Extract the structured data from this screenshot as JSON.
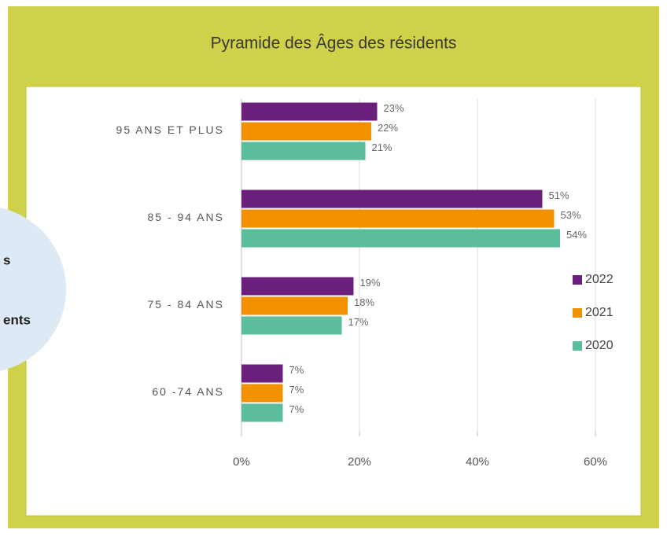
{
  "chart_data": {
    "type": "bar",
    "orientation": "horizontal",
    "title": "Pyramide des Âges des résidents",
    "categories": [
      "95 ANS ET PLUS",
      "85 - 94 ANS",
      "75 - 84 ANS",
      "60 -74 ANS"
    ],
    "series": [
      {
        "name": "2022",
        "color": "#6b1f7c",
        "values": [
          23,
          51,
          19,
          7
        ],
        "value_labels": [
          "23%",
          "51%",
          "19%",
          "7%"
        ]
      },
      {
        "name": "2021",
        "color": "#f29100",
        "values": [
          22,
          53,
          18,
          7
        ],
        "value_labels": [
          "22%",
          "53%",
          "18%",
          "7%"
        ]
      },
      {
        "name": "2020",
        "color": "#5bbd9a",
        "values": [
          21,
          54,
          17,
          7
        ],
        "value_labels": [
          "21%",
          "54%",
          "17%",
          "7%"
        ]
      }
    ],
    "xlim": [
      0,
      60
    ],
    "xticks": [
      {
        "value": 0,
        "label": "0%"
      },
      {
        "value": 20,
        "label": "20%"
      },
      {
        "value": 40,
        "label": "40%"
      },
      {
        "value": 60,
        "label": "60%"
      }
    ],
    "grid": true,
    "legend": "right"
  },
  "overlay": {
    "lines": [
      "s",
      "ents"
    ]
  }
}
